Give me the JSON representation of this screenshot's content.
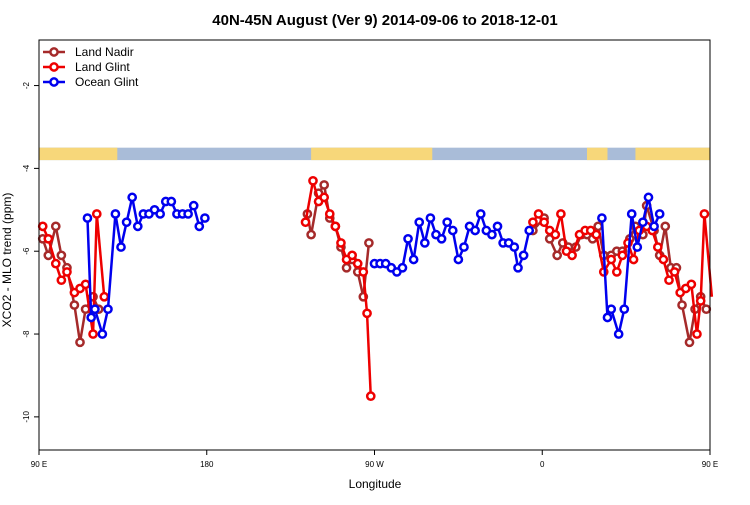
{
  "chart_data": {
    "type": "line",
    "title": "40N-45N August (Ver 9)   2014-09-06 to 2018-12-01",
    "xlabel": "Longitude",
    "ylabel": "XCO2 - MLO trend (ppm)",
    "xlim": [
      90,
      450
    ],
    "ylim": [
      -10.8,
      -0.9
    ],
    "x_ticks": [
      {
        "value": 90,
        "label": "90 E"
      },
      {
        "value": 180,
        "label": "180"
      },
      {
        "value": 270,
        "label": "90 W"
      },
      {
        "value": 360,
        "label": "0"
      },
      {
        "value": 450,
        "label": "90 E"
      },
      {
        "value": 540,
        "label": "180"
      }
    ],
    "y_ticks": [
      {
        "value": -2,
        "label": "-2"
      },
      {
        "value": -4,
        "label": "-4"
      },
      {
        "value": -6,
        "label": "-6"
      },
      {
        "value": -8,
        "label": "-8"
      },
      {
        "value": -10,
        "label": "-10"
      }
    ],
    "grid": false,
    "legend_position": "top-left",
    "land_strip": {
      "y_range": [
        -3.8,
        -3.5
      ],
      "ocean_color": "#a9bcd8",
      "land_color": "#f7d77a",
      "land_x_ranges": [
        [
          90,
          132
        ],
        [
          236,
          301
        ],
        [
          384,
          395
        ],
        [
          410,
          489
        ],
        [
          495,
          540
        ]
      ]
    },
    "series": [
      {
        "name": "Land Nadir",
        "color": "#a52a2a",
        "points": [
          [
            92,
            -5.7
          ],
          [
            95,
            -6.1
          ],
          [
            99,
            -5.4
          ],
          [
            102,
            -6.1
          ],
          [
            105,
            -6.4
          ],
          [
            109,
            -7.3
          ],
          [
            112,
            -8.2
          ],
          [
            115,
            -7.4
          ],
          [
            119,
            -7.1
          ],
          [
            122,
            -7.4
          ],
          [
            234,
            -5.1
          ],
          [
            236,
            -5.6
          ],
          [
            240,
            -4.6
          ],
          [
            243,
            -4.4
          ],
          [
            246,
            -5.2
          ],
          [
            249,
            -5.4
          ],
          [
            252,
            -5.9
          ],
          [
            255,
            -6.4
          ],
          [
            258,
            -6.2
          ],
          [
            261,
            -6.5
          ],
          [
            264,
            -7.1
          ],
          [
            267,
            -5.8
          ],
          [
            355,
            -5.5
          ],
          [
            361,
            -5.2
          ],
          [
            364,
            -5.7
          ],
          [
            368,
            -6.1
          ],
          [
            371,
            -5.8
          ],
          [
            374,
            -5.9
          ],
          [
            378,
            -5.9
          ],
          [
            381,
            -5.6
          ],
          [
            384,
            -5.6
          ],
          [
            387,
            -5.7
          ],
          [
            390,
            -5.4
          ],
          [
            393,
            -6.1
          ],
          [
            397,
            -6.1
          ],
          [
            400,
            -6.0
          ],
          [
            403,
            -6.0
          ],
          [
            407,
            -5.7
          ],
          [
            410,
            -5.4
          ],
          [
            414,
            -5.6
          ],
          [
            416,
            -4.9
          ],
          [
            420,
            -5.5
          ],
          [
            423,
            -6.1
          ],
          [
            426,
            -5.4
          ],
          [
            429,
            -6.4
          ],
          [
            432,
            -6.4
          ],
          [
            435,
            -7.3
          ],
          [
            439,
            -8.2
          ],
          [
            442,
            -7.4
          ],
          [
            445,
            -7.1
          ],
          [
            448,
            -7.4
          ]
        ]
      },
      {
        "name": "Land Glint",
        "color": "#ee0000",
        "points": [
          [
            92,
            -5.4
          ],
          [
            95,
            -5.7
          ],
          [
            99,
            -6.3
          ],
          [
            102,
            -6.7
          ],
          [
            105,
            -6.5
          ],
          [
            109,
            -7.0
          ],
          [
            112,
            -6.9
          ],
          [
            115,
            -6.8
          ],
          [
            119,
            -8.0
          ],
          [
            121,
            -5.1
          ],
          [
            125,
            -7.1
          ],
          [
            233,
            -5.3
          ],
          [
            237,
            -4.3
          ],
          [
            240,
            -4.8
          ],
          [
            243,
            -4.7
          ],
          [
            246,
            -5.1
          ],
          [
            249,
            -5.4
          ],
          [
            252,
            -5.8
          ],
          [
            255,
            -6.2
          ],
          [
            258,
            -6.1
          ],
          [
            261,
            -6.3
          ],
          [
            264,
            -6.5
          ],
          [
            266,
            -7.5
          ],
          [
            268,
            -9.5
          ],
          [
            355,
            -5.3
          ],
          [
            358,
            -5.1
          ],
          [
            361,
            -5.3
          ],
          [
            364,
            -5.5
          ],
          [
            367,
            -5.6
          ],
          [
            370,
            -5.1
          ],
          [
            373,
            -6.0
          ],
          [
            376,
            -6.1
          ],
          [
            380,
            -5.6
          ],
          [
            383,
            -5.5
          ],
          [
            386,
            -5.5
          ],
          [
            389,
            -5.6
          ],
          [
            393,
            -6.5
          ],
          [
            397,
            -6.2
          ],
          [
            400,
            -6.5
          ],
          [
            403,
            -6.1
          ],
          [
            406,
            -5.8
          ],
          [
            409,
            -6.2
          ],
          [
            412,
            -5.5
          ],
          [
            416,
            -5.4
          ],
          [
            419,
            -5.5
          ],
          [
            422,
            -5.9
          ],
          [
            425,
            -6.2
          ],
          [
            428,
            -6.7
          ],
          [
            431,
            -6.5
          ],
          [
            434,
            -7.0
          ],
          [
            437,
            -6.9
          ],
          [
            440,
            -6.8
          ],
          [
            443,
            -8.0
          ],
          [
            445,
            -7.2
          ],
          [
            447,
            -5.1
          ],
          [
            451,
            -7.1
          ]
        ]
      },
      {
        "name": "Ocean Glint",
        "color": "#0000ee",
        "points": [
          [
            116,
            -5.2
          ],
          [
            118,
            -7.6
          ],
          [
            120,
            -7.4
          ],
          [
            124,
            -8.0
          ],
          [
            127,
            -7.4
          ],
          [
            131,
            -5.1
          ],
          [
            134,
            -5.9
          ],
          [
            137,
            -5.3
          ],
          [
            140,
            -4.7
          ],
          [
            143,
            -5.4
          ],
          [
            146,
            -5.1
          ],
          [
            149,
            -5.1
          ],
          [
            152,
            -5.0
          ],
          [
            155,
            -5.1
          ],
          [
            158,
            -4.8
          ],
          [
            161,
            -4.8
          ],
          [
            164,
            -5.1
          ],
          [
            167,
            -5.1
          ],
          [
            170,
            -5.1
          ],
          [
            173,
            -4.9
          ],
          [
            176,
            -5.4
          ],
          [
            179,
            -5.2
          ],
          [
            270,
            -6.3
          ],
          [
            273,
            -6.3
          ],
          [
            276,
            -6.3
          ],
          [
            279,
            -6.4
          ],
          [
            282,
            -6.5
          ],
          [
            285,
            -6.4
          ],
          [
            288,
            -5.7
          ],
          [
            291,
            -6.2
          ],
          [
            294,
            -5.3
          ],
          [
            297,
            -5.8
          ],
          [
            300,
            -5.2
          ],
          [
            303,
            -5.6
          ],
          [
            306,
            -5.7
          ],
          [
            309,
            -5.3
          ],
          [
            312,
            -5.5
          ],
          [
            315,
            -6.2
          ],
          [
            318,
            -5.9
          ],
          [
            321,
            -5.4
          ],
          [
            324,
            -5.5
          ],
          [
            327,
            -5.1
          ],
          [
            330,
            -5.5
          ],
          [
            333,
            -5.6
          ],
          [
            336,
            -5.4
          ],
          [
            339,
            -5.8
          ],
          [
            342,
            -5.8
          ],
          [
            345,
            -5.9
          ],
          [
            347,
            -6.4
          ],
          [
            350,
            -6.1
          ],
          [
            353,
            -5.5
          ],
          [
            392,
            -5.2
          ],
          [
            395,
            -7.6
          ],
          [
            397,
            -7.4
          ],
          [
            401,
            -8.0
          ],
          [
            404,
            -7.4
          ],
          [
            408,
            -5.1
          ],
          [
            411,
            -5.9
          ],
          [
            414,
            -5.3
          ],
          [
            417,
            -4.7
          ],
          [
            420,
            -5.4
          ],
          [
            423,
            -5.1
          ]
        ]
      }
    ]
  }
}
